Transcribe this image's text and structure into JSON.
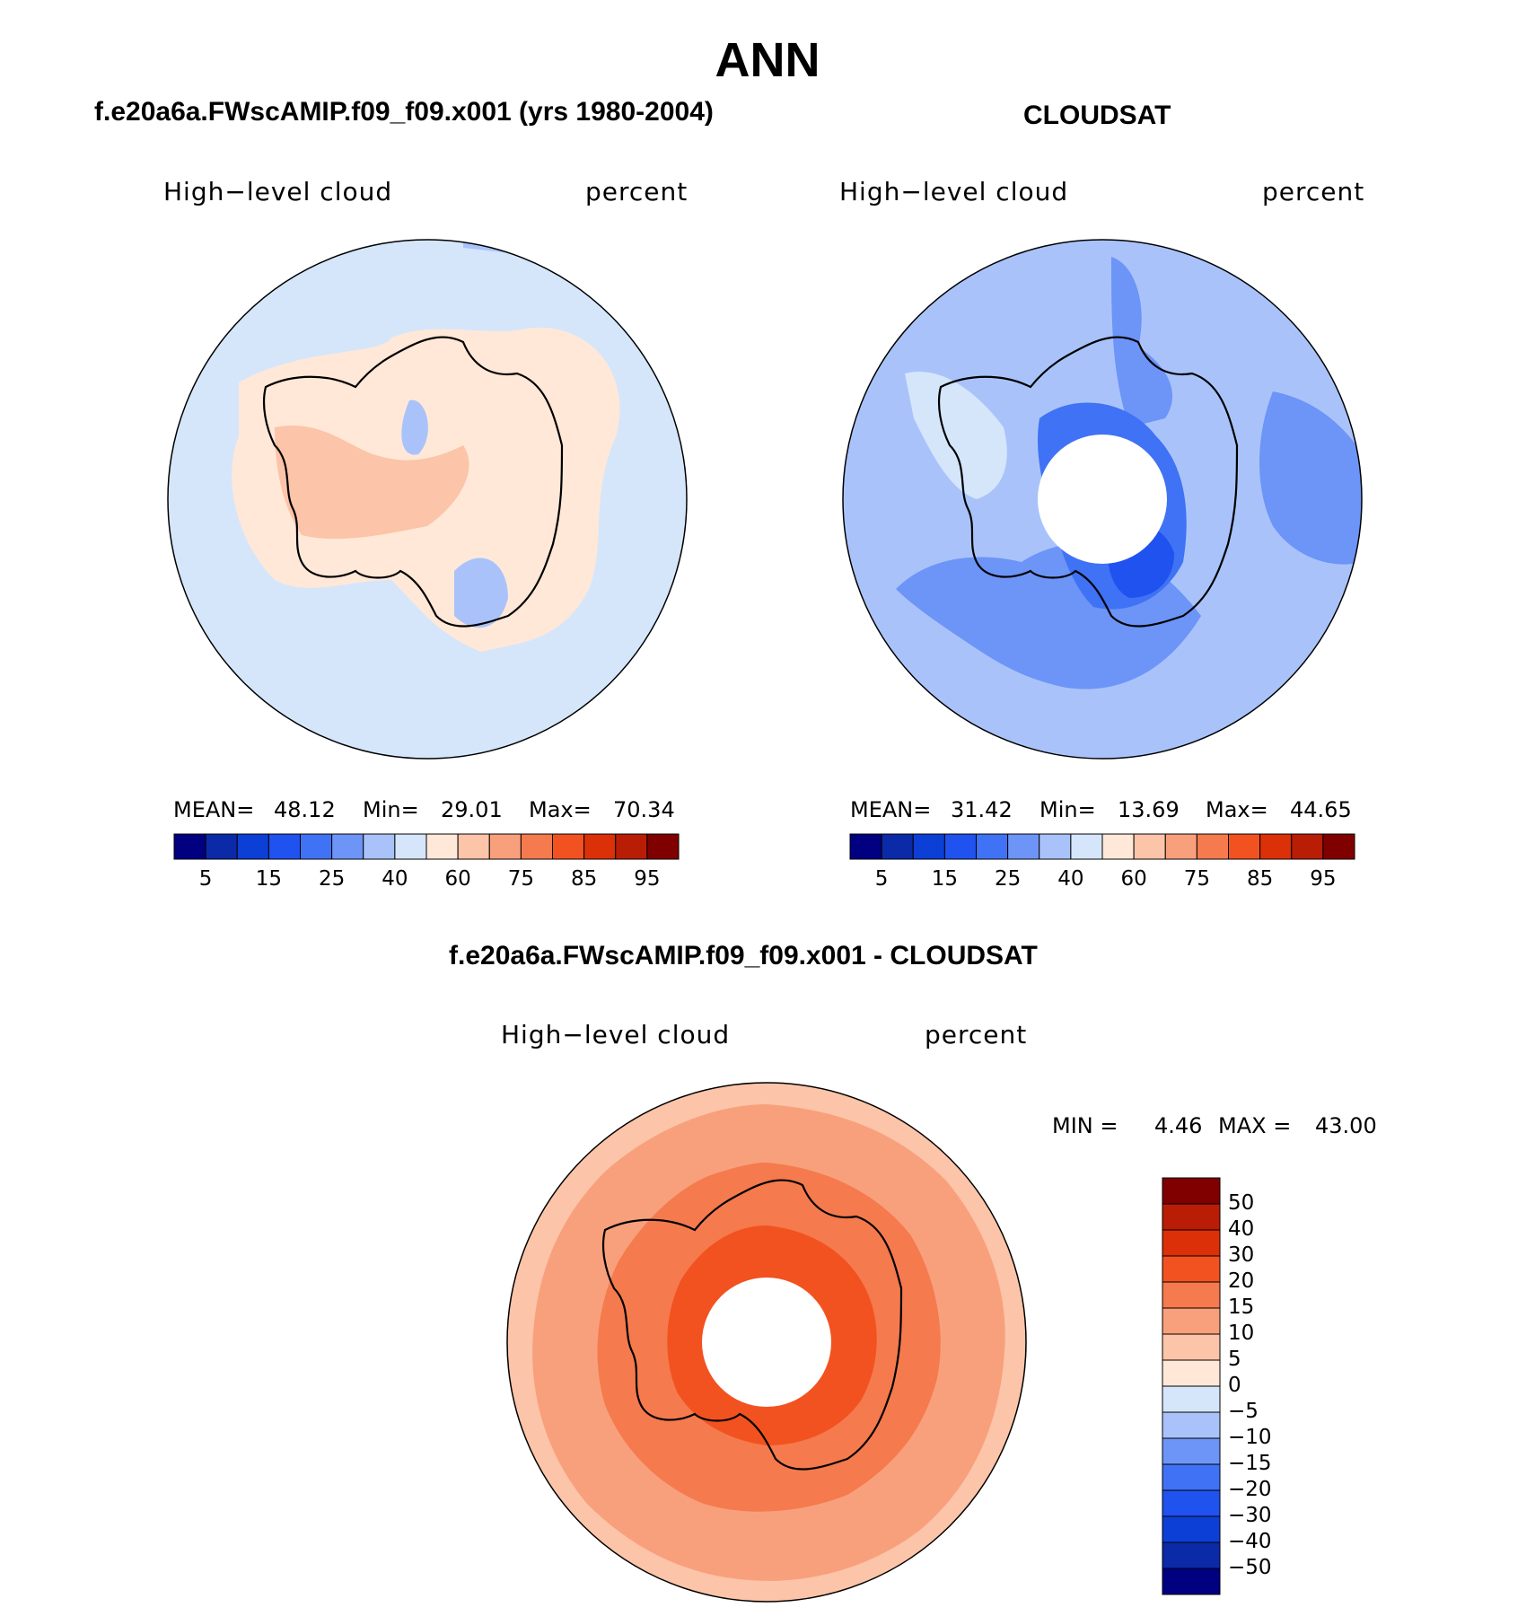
{
  "page_title": "ANN",
  "colors": {
    "scale": [
      "#000080",
      "#0a2aa8",
      "#0c3fd6",
      "#1f52ee",
      "#3f72f4",
      "#6d94f7",
      "#a9c3fa",
      "#d5e6fb",
      "#ffe8d8",
      "#fcc4a8",
      "#f8a07c",
      "#f57a4e",
      "#f25220",
      "#db3008",
      "#b91d06",
      "#800000"
    ],
    "diff_scale": [
      "#000080",
      "#0a2aa8",
      "#0c3fd6",
      "#1f52ee",
      "#3f72f4",
      "#6d94f7",
      "#a9c3fa",
      "#d5e6fb",
      "#ffe8d8",
      "#fcc4a8",
      "#f8a07c",
      "#f57a4e",
      "#f25220",
      "#db3008",
      "#b91d06",
      "#800000"
    ]
  },
  "chart_data": [
    {
      "type": "heatmap",
      "projection": "south polar stereographic",
      "title": "f.e20a6a.FWscAMIP.f09_f09.x001 (yrs 1980-2004)",
      "variable": "High−level cloud",
      "units": "percent",
      "stats": {
        "mean_label": "MEAN=",
        "mean": "48.12",
        "min_label": "Min=",
        "min": "29.01",
        "max_label": "Max=",
        "max": "70.34"
      },
      "colorbar_ticks": [
        "5",
        "15",
        "25",
        "40",
        "60",
        "75",
        "85",
        "95"
      ],
      "colorbar_levels": 16,
      "dominant_regions": [
        {
          "region": "ocean",
          "level_index": 7
        },
        {
          "region": "antarctic interior",
          "level_index": 8
        },
        {
          "region": "west antarctica core",
          "level_index": 9
        },
        {
          "region": "east antarctic plateau patches",
          "level_index": 6
        }
      ]
    },
    {
      "type": "heatmap",
      "projection": "south polar stereographic",
      "title": "CLOUDSAT",
      "variable": "High−level cloud",
      "units": "percent",
      "stats": {
        "mean_label": "MEAN=",
        "mean": "31.42",
        "min_label": "Min=",
        "min": "13.69",
        "max_label": "Max=",
        "max": "44.65"
      },
      "colorbar_ticks": [
        "5",
        "15",
        "25",
        "40",
        "60",
        "75",
        "85",
        "95"
      ],
      "colorbar_levels": 16,
      "dominant_regions": [
        {
          "region": "ocean",
          "level_index": 6
        },
        {
          "region": "ross and weddell sectors",
          "level_index": 5
        },
        {
          "region": "pacific sector",
          "level_index": 4
        },
        {
          "region": "interior minimum",
          "level_index": 3
        },
        {
          "region": "antarctic peninsula",
          "level_index": 7
        }
      ]
    },
    {
      "type": "heatmap",
      "projection": "south polar stereographic",
      "title": "f.e20a6a.FWscAMIP.f09_f09.x001 - CLOUDSAT",
      "variable": "High−level cloud",
      "units": "percent",
      "stats": {
        "min_label": "MIN =",
        "min": "4.46",
        "max_label": "MAX =",
        "max": "43.00"
      },
      "colorbar_ticks": [
        "50",
        "40",
        "30",
        "20",
        "15",
        "10",
        "5",
        "0",
        "−5",
        "−10",
        "−15",
        "−20",
        "−30",
        "−40",
        "−50"
      ],
      "colorbar_levels": 16,
      "dominant_regions": [
        {
          "region": "outer ocean ring",
          "level_index": 9
        },
        {
          "region": "mid ocean ring",
          "level_index": 10
        },
        {
          "region": "antarctic coast",
          "level_index": 11
        },
        {
          "region": "interior maximum",
          "level_index": 12
        }
      ]
    }
  ]
}
